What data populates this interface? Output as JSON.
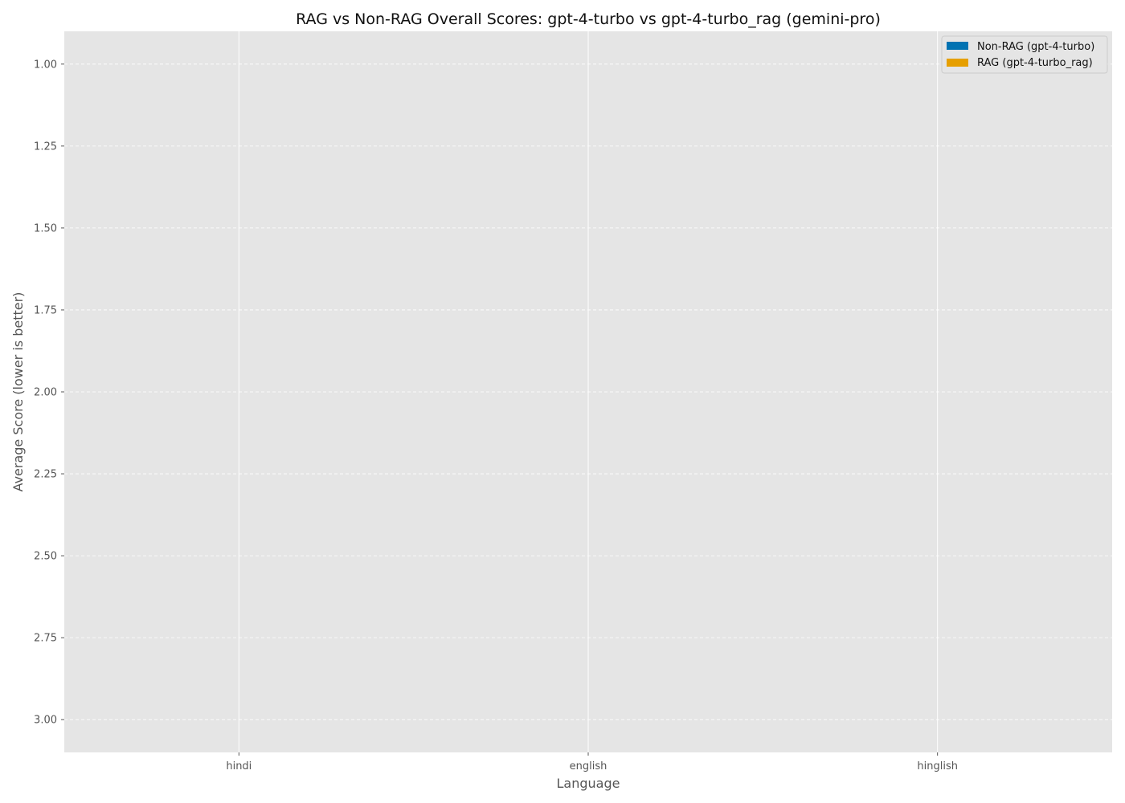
{
  "chart_data": {
    "type": "bar",
    "title": "RAG vs Non-RAG Overall Scores: gpt-4-turbo vs gpt-4-turbo_rag (gemini-pro)",
    "xlabel": "Language",
    "ylabel": "Average Score (lower is better)",
    "categories": [
      "hindi",
      "english",
      "hinglish"
    ],
    "ylim": [
      3.1,
      0.9
    ],
    "y_inverted": true,
    "yticks": [
      "1.00",
      "1.25",
      "1.50",
      "1.75",
      "2.00",
      "2.25",
      "2.50",
      "2.75",
      "3.00"
    ],
    "ytick_values": [
      1.0,
      1.25,
      1.5,
      1.75,
      2.0,
      2.25,
      2.5,
      2.75,
      3.0
    ],
    "grid": true,
    "legend_position": "top-right",
    "series": [
      {
        "name": "Non-RAG (gpt-4-turbo)",
        "color": "#0072B2",
        "values": [
          null,
          null,
          null
        ]
      },
      {
        "name": "RAG (gpt-4-turbo_rag)",
        "color": "#E69F00",
        "values": [
          null,
          null,
          null
        ]
      }
    ],
    "colors": {
      "plot_background": "#E5E5E5",
      "grid": "#ffffff"
    }
  }
}
